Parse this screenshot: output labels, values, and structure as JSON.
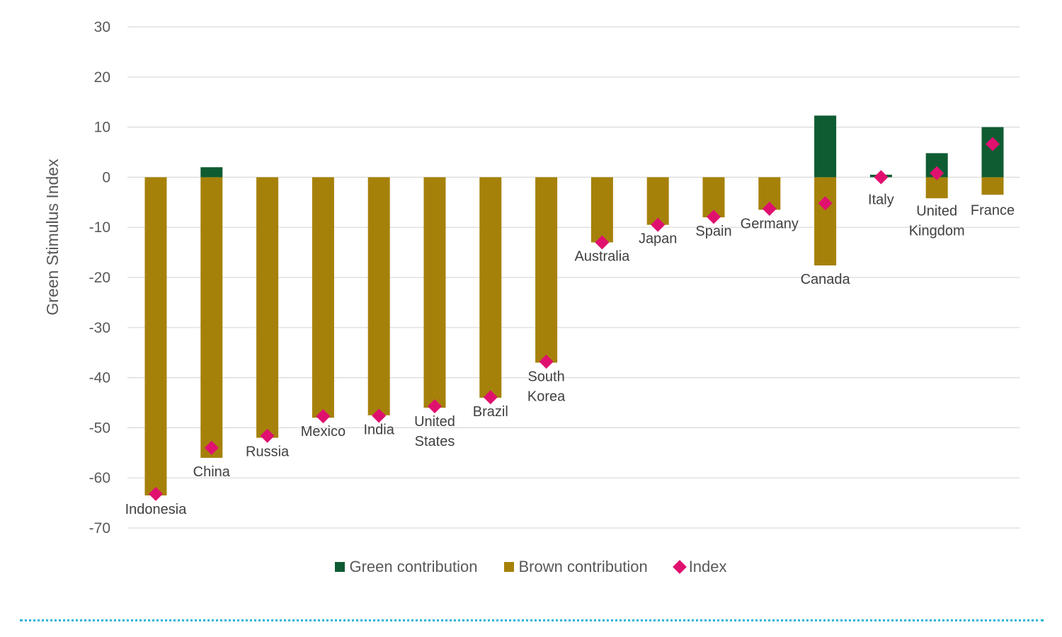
{
  "colors": {
    "green": "#0f5c32",
    "brown": "#a6810a",
    "index": "#e0106f",
    "grid": "#d9d9d9",
    "divider": "#27b5d6"
  },
  "legend": {
    "green_label": "Green contribution",
    "brown_label": "Brown contribution",
    "index_label": "Index"
  },
  "chart_data": {
    "type": "bar",
    "subtype": "stacked-bar-with-markers",
    "ylabel": "Green Stimulus Index",
    "xlabel": "",
    "ylim": [
      -70,
      30
    ],
    "yticks": [
      30,
      20,
      10,
      0,
      -10,
      -20,
      -30,
      -40,
      -50,
      -60,
      -70
    ],
    "grid": true,
    "legend_position": "bottom",
    "categories": [
      "Indonesia",
      "China",
      "Russia",
      "Mexico",
      "India",
      "United States",
      "Brazil",
      "South Korea",
      "Australia",
      "Japan",
      "Spain",
      "Germany",
      "Canada",
      "Italy",
      "United Kingdom",
      "France"
    ],
    "label_lines": [
      [
        "Indonesia"
      ],
      [
        "China"
      ],
      [
        "Russia"
      ],
      [
        "Mexico"
      ],
      [
        "India"
      ],
      [
        "United",
        "States"
      ],
      [
        "Brazil"
      ],
      [
        "South",
        "Korea"
      ],
      [
        "Australia"
      ],
      [
        "Japan"
      ],
      [
        "Spain"
      ],
      [
        "Germany"
      ],
      [
        "Canada"
      ],
      [
        "Italy"
      ],
      [
        "United",
        "Kingdom"
      ],
      [
        "France"
      ]
    ],
    "series": [
      {
        "name": "Green contribution",
        "values": [
          0,
          2,
          0,
          0,
          0,
          0,
          0,
          0,
          0,
          0,
          0,
          0,
          12.3,
          0.5,
          4.8,
          10
        ]
      },
      {
        "name": "Brown contribution",
        "values": [
          -63.5,
          -56,
          -52,
          -48,
          -47.5,
          -46,
          -44,
          -37,
          -13,
          -9.5,
          -8,
          -6.5,
          -17.6,
          0,
          -4.2,
          -3.5
        ]
      },
      {
        "name": "Index",
        "values": [
          -63.2,
          -54,
          -51.6,
          -47.7,
          -47.6,
          -45.7,
          -43.9,
          -36.8,
          -13,
          -9.5,
          -7.9,
          -6.3,
          -5.2,
          0,
          0.8,
          6.6
        ]
      }
    ]
  }
}
